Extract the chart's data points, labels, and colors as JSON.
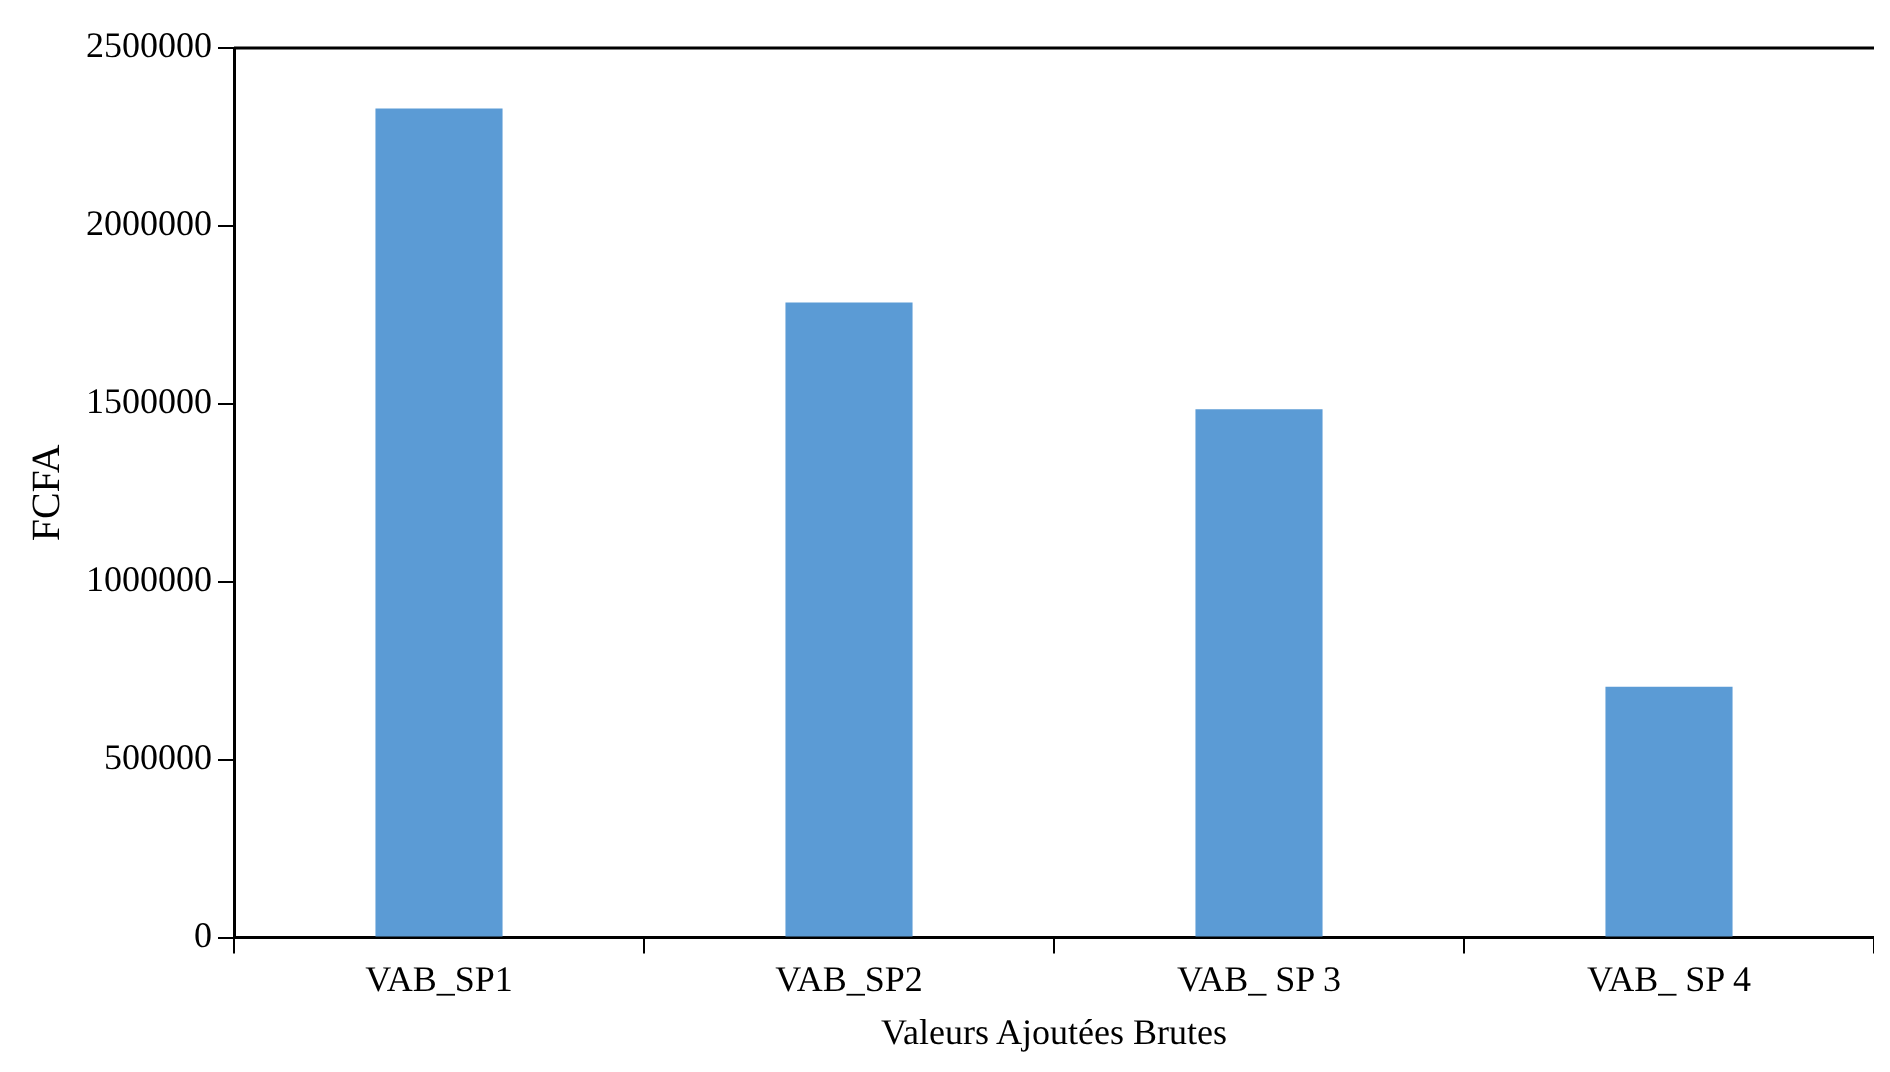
{
  "chart_data": {
    "type": "bar",
    "xlabel": "Valeurs Ajoutées Brutes",
    "ylabel": "FCFA",
    "categories": [
      "VAB_SP1",
      "VAB_SP2",
      "VAB_ SP 3",
      "VAB_ SP 4"
    ],
    "values": [
      2330000,
      1785000,
      1485000,
      705000
    ],
    "color": "#5b9bd5",
    "ylim": [
      0,
      2500000
    ],
    "yticks": [
      0,
      500000,
      1000000,
      1500000,
      2000000,
      2500000
    ],
    "grid": false,
    "legend": false
  }
}
